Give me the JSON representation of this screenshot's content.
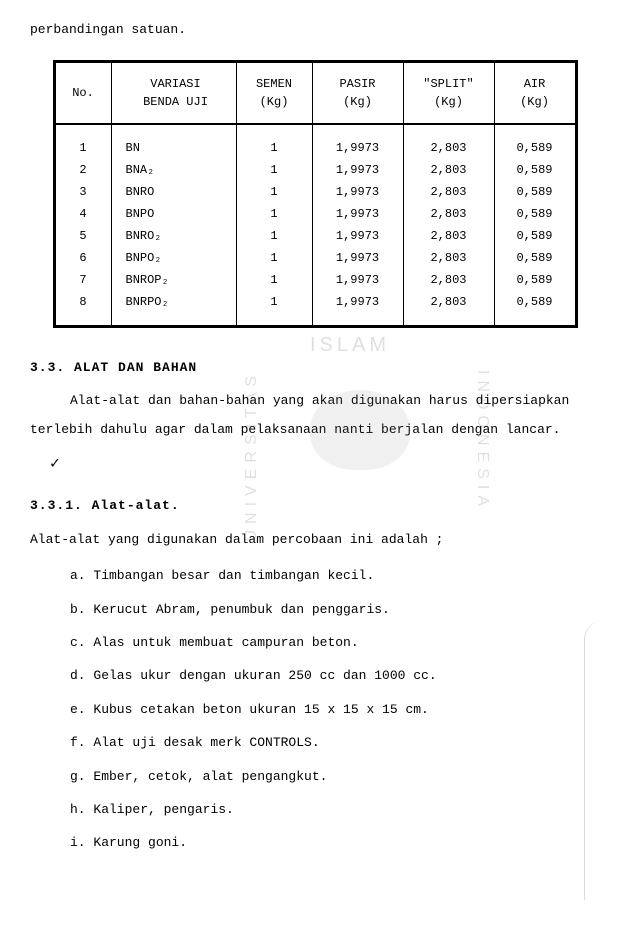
{
  "topline": "perbandingan satuan.",
  "table": {
    "headers": {
      "no": "No.",
      "variasi": "VARIASI\nBENDA UJI",
      "semen": "SEMEN\n(Kg)",
      "pasir": "PASIR\n(Kg)",
      "split": "\"SPLIT\"\n(Kg)",
      "air": "AIR\n(Kg)"
    },
    "rows": [
      {
        "no": "1",
        "var": "BN",
        "semen": "1",
        "pasir": "1,9973",
        "split": "2,803",
        "air": "0,589"
      },
      {
        "no": "2",
        "var": "BNA₂",
        "semen": "1",
        "pasir": "1,9973",
        "split": "2,803",
        "air": "0,589"
      },
      {
        "no": "3",
        "var": "BNRO",
        "semen": "1",
        "pasir": "1,9973",
        "split": "2,803",
        "air": "0,589"
      },
      {
        "no": "4",
        "var": "BNPO",
        "semen": "1",
        "pasir": "1,9973",
        "split": "2,803",
        "air": "0,589"
      },
      {
        "no": "5",
        "var": "BNRO₂",
        "semen": "1",
        "pasir": "1,9973",
        "split": "2,803",
        "air": "0,589"
      },
      {
        "no": "6",
        "var": "BNPO₂",
        "semen": "1",
        "pasir": "1,9973",
        "split": "2,803",
        "air": "0,589"
      },
      {
        "no": "7",
        "var": "BNROP₂",
        "semen": "1",
        "pasir": "1,9973",
        "split": "2,803",
        "air": "0,589"
      },
      {
        "no": "8",
        "var": "BNRPO₂",
        "semen": "1",
        "pasir": "1,9973",
        "split": "2,803",
        "air": "0,589"
      }
    ]
  },
  "watermark": {
    "top": "ISLAM",
    "left": "UNIVERSITAS",
    "right": "INDONESIA"
  },
  "section33_heading": "3.3. ALAT DAN BAHAN",
  "section33_p1": "Alat-alat dan bahan-bahan yang akan digunakan harus dipersiapkan terlebih dahulu agar dalam pelaksanaan nanti berjalan dengan lancar.",
  "section331_heading": "3.3.1. Alat-alat.",
  "section331_intro": "Alat-alat yang digunakan dalam percobaan ini adalah ;",
  "items": [
    "a. Timbangan besar dan timbangan kecil.",
    "b. Kerucut Abram, penumbuk dan penggaris.",
    "c. Alas untuk membuat campuran beton.",
    "d. Gelas ukur dengan ukuran 250 cc dan 1000 cc.",
    "e. Kubus cetakan beton ukuran 15 x 15 x 15 cm.",
    "f. Alat uji desak merk CONTROLS.",
    "g. Ember, cetok, alat pengangkut.",
    "h. Kaliper, pengaris.",
    "i. Karung goni."
  ]
}
